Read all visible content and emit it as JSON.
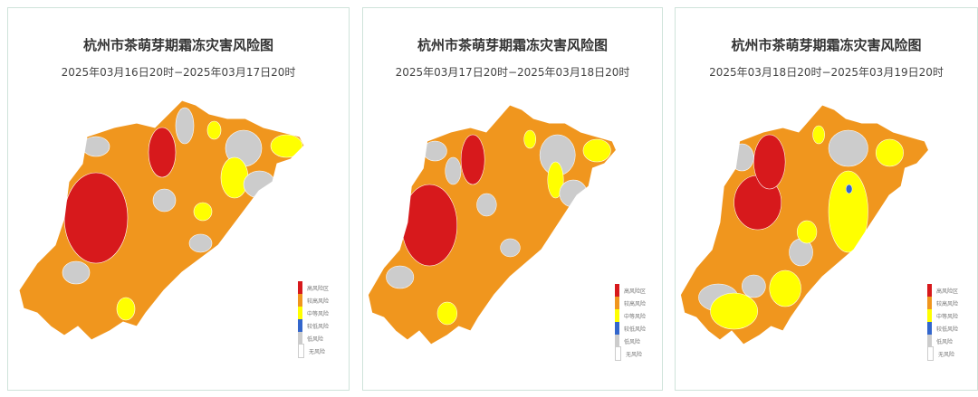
{
  "legend": [
    {
      "label": "高风险区",
      "color": "#d7191c"
    },
    {
      "label": "较高风险",
      "color": "#f0961e"
    },
    {
      "label": "中等风险",
      "color": "#ffff00"
    },
    {
      "label": "较低风险",
      "color": "#3366cc"
    },
    {
      "label": "低风险",
      "color": "#cccccc"
    },
    {
      "label": "无风险",
      "color": "#ffffff"
    }
  ],
  "panels": [
    {
      "title": "杭州市茶萌芽期霜冻灾害风险图",
      "subtitle": "2025年03月16日20时−2025年03月17日20时"
    },
    {
      "title": "杭州市茶萌芽期霜冻灾害风险图",
      "subtitle": "2025年03月17日20时−2025年03月18日20时"
    },
    {
      "title": "杭州市茶萌芽期霜冻灾害风险图",
      "subtitle": "2025年03月18日20时−2025年03月19日20时"
    }
  ]
}
